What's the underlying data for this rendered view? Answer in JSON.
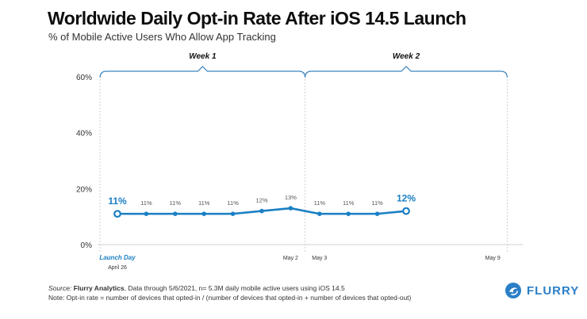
{
  "header": {
    "title": "Worldwide Daily Opt-in Rate After iOS 14.5 Launch",
    "subtitle": "% of Mobile Active Users Who Allow App Tracking"
  },
  "footer": {
    "source_label": "Source:",
    "source_name": "Flurry Analytics",
    "source_text": ", Data through 5/6/2021, n= 5.3M daily mobile active users using iOS 14.5",
    "note": "Note: Opt-in rate = number of devices that opted-in / (number of devices that opted-in + number of devices that opted-out)"
  },
  "brand": {
    "name": "FLURRY",
    "color": "#2a7fc7"
  },
  "colors": {
    "line": "#1a7fc4",
    "axis": "#cfcfcf",
    "bracket": "#3a84bf",
    "dashed": "#d0d0d0"
  },
  "chart_data": {
    "type": "line",
    "title": "Worldwide Daily Opt-in Rate After iOS 14.5 Launch",
    "subtitle": "% of Mobile Active Users Who Allow App Tracking",
    "ylabel": "",
    "xlabel": "",
    "ylim": [
      0,
      60
    ],
    "yticks": [
      "60%",
      "40%",
      "20%",
      "0%"
    ],
    "ytick_values": [
      60,
      40,
      20,
      0
    ],
    "xlim": [
      0,
      14
    ],
    "x": [
      0,
      1,
      2,
      3,
      4,
      5,
      6,
      7,
      8,
      9,
      10
    ],
    "values": [
      11,
      11,
      11,
      11,
      11,
      12,
      13,
      11,
      11,
      11,
      12
    ],
    "value_labels": [
      "11%",
      "11%",
      "11%",
      "11%",
      "11%",
      "12%",
      "13%",
      "11%",
      "11%",
      "11%",
      "12%"
    ],
    "highlighted_labels": [
      0,
      10
    ],
    "x_labels": [
      {
        "x": 0,
        "text": "Launch Day",
        "sub": "April 26"
      },
      {
        "x": 6,
        "text": "May 2"
      },
      {
        "x": 7,
        "text": "May 3"
      },
      {
        "x": 13,
        "text": "May 9"
      }
    ],
    "periods": [
      {
        "label": "Week 1",
        "start": -0.6,
        "end": 6.5
      },
      {
        "label": "Week 2",
        "start": 6.5,
        "end": 13.5
      }
    ]
  }
}
